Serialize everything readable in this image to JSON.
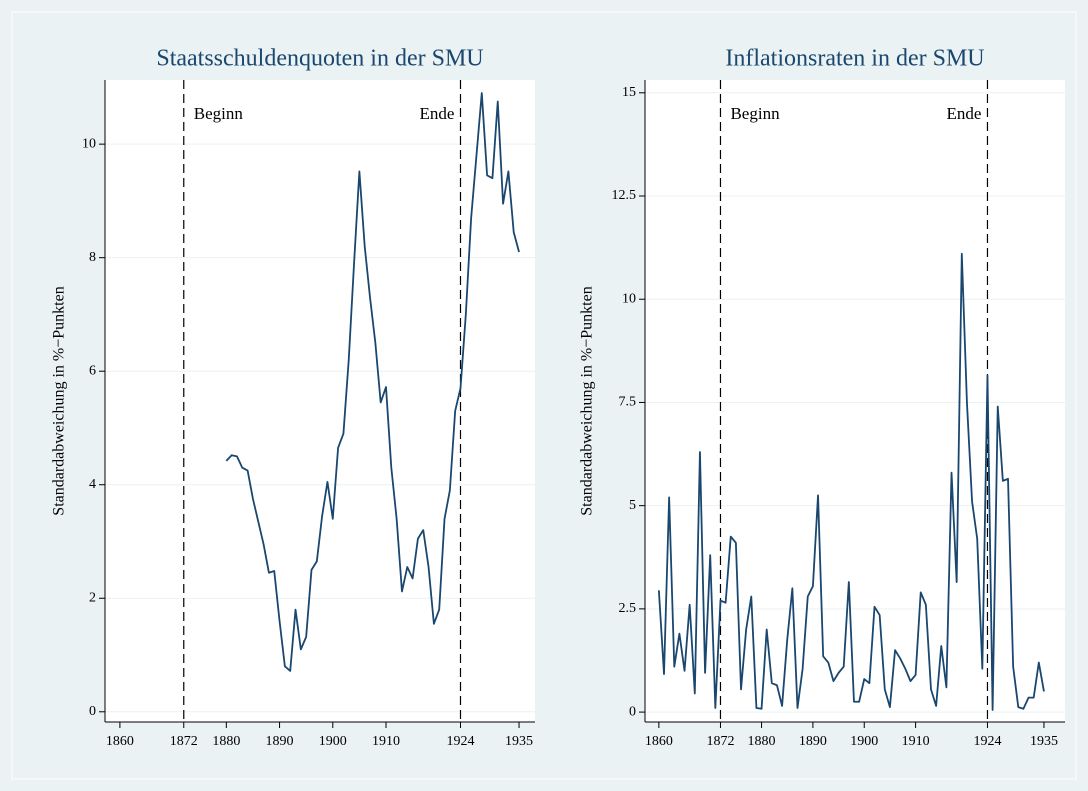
{
  "chart_data": [
    {
      "type": "line",
      "title": "Staatsschuldenquoten in der SMU",
      "ylabel": "Standardabweichung in %−Punkten",
      "xlim": [
        1857.2,
        1938
      ],
      "ylim": [
        -0.18,
        11.13
      ],
      "xticks": [
        1860,
        1872,
        1880,
        1890,
        1900,
        1910,
        1924,
        1935
      ],
      "yticks": [
        0,
        2,
        4,
        6,
        8,
        10
      ],
      "grid": true,
      "vlines": [
        {
          "x": 1872,
          "label": "Beginn"
        },
        {
          "x": 1924,
          "label": "Ende"
        }
      ],
      "x": [
        1880,
        1881,
        1882,
        1883,
        1884,
        1885,
        1886,
        1887,
        1888,
        1889,
        1890,
        1891,
        1892,
        1893,
        1894,
        1895,
        1896,
        1897,
        1898,
        1899,
        1900,
        1901,
        1902,
        1903,
        1904,
        1905,
        1906,
        1907,
        1908,
        1909,
        1910,
        1911,
        1912,
        1913,
        1914,
        1915,
        1916,
        1917,
        1918,
        1919,
        1920,
        1921,
        1922,
        1923,
        1924,
        1925,
        1926,
        1927,
        1928,
        1929,
        1930,
        1931,
        1932,
        1933,
        1934,
        1935
      ],
      "series": [
        {
          "color": "#1a476f",
          "values": [
            4.42,
            4.52,
            4.5,
            4.3,
            4.25,
            3.75,
            3.35,
            2.95,
            2.45,
            2.48,
            1.6,
            0.8,
            0.72,
            1.8,
            1.1,
            1.32,
            2.5,
            2.65,
            3.45,
            4.05,
            3.4,
            4.65,
            4.9,
            6.2,
            7.9,
            9.52,
            8.2,
            7.3,
            6.5,
            5.45,
            5.72,
            4.3,
            3.4,
            2.12,
            2.55,
            2.35,
            3.05,
            3.2,
            2.55,
            1.55,
            1.8,
            3.4,
            3.9,
            5.3,
            5.7,
            7.0,
            8.7,
            9.8,
            10.9,
            9.45,
            9.4,
            10.75,
            8.95,
            9.52,
            8.45,
            8.1
          ]
        }
      ]
    },
    {
      "type": "line",
      "title": "Inflationsraten in der SMU",
      "ylabel": "Standardabweichung in %−Punkten",
      "xlim": [
        1857.3,
        1939.1
      ],
      "ylim": [
        -0.24,
        15.31
      ],
      "xticks": [
        1860,
        1872,
        1880,
        1890,
        1900,
        1910,
        1924,
        1935
      ],
      "yticks": [
        0,
        2.5,
        5,
        7.5,
        10,
        12.5,
        15
      ],
      "grid": true,
      "vlines": [
        {
          "x": 1872,
          "label": "Beginn"
        },
        {
          "x": 1924,
          "label": "Ende"
        }
      ],
      "x": [
        1860,
        1861,
        1862,
        1863,
        1864,
        1865,
        1866,
        1867,
        1868,
        1869,
        1870,
        1871,
        1872,
        1873,
        1874,
        1875,
        1876,
        1877,
        1878,
        1879,
        1880,
        1881,
        1882,
        1883,
        1884,
        1885,
        1886,
        1887,
        1888,
        1889,
        1890,
        1891,
        1892,
        1893,
        1894,
        1895,
        1896,
        1897,
        1898,
        1899,
        1900,
        1901,
        1902,
        1903,
        1904,
        1905,
        1906,
        1907,
        1908,
        1909,
        1910,
        1911,
        1912,
        1913,
        1914,
        1915,
        1916,
        1917,
        1918,
        1919,
        1920,
        1921,
        1922,
        1923,
        1924,
        1925,
        1926,
        1927,
        1928,
        1929,
        1930,
        1931,
        1932,
        1933,
        1934,
        1935
      ],
      "series": [
        {
          "color": "#1a476f",
          "values": [
            2.95,
            0.92,
            5.2,
            1.1,
            1.9,
            1.0,
            2.6,
            0.45,
            6.3,
            0.95,
            3.8,
            0.1,
            2.7,
            2.65,
            4.25,
            4.1,
            0.55,
            2.0,
            2.8,
            0.1,
            0.08,
            2.0,
            0.7,
            0.65,
            0.15,
            1.75,
            3.0,
            0.1,
            1.05,
            2.8,
            3.05,
            5.25,
            1.35,
            1.2,
            0.75,
            0.95,
            1.1,
            3.15,
            0.25,
            0.25,
            0.8,
            0.7,
            2.55,
            2.35,
            0.55,
            0.12,
            1.5,
            1.3,
            1.05,
            0.75,
            0.9,
            2.9,
            2.6,
            0.55,
            0.15,
            1.6,
            0.6,
            5.8,
            3.15,
            11.1,
            7.5,
            5.1,
            4.2,
            1.05,
            8.15,
            0.05,
            7.4,
            5.6,
            5.65,
            1.1,
            0.12,
            0.08,
            0.35,
            0.35,
            1.2,
            0.5
          ]
        }
      ]
    }
  ]
}
